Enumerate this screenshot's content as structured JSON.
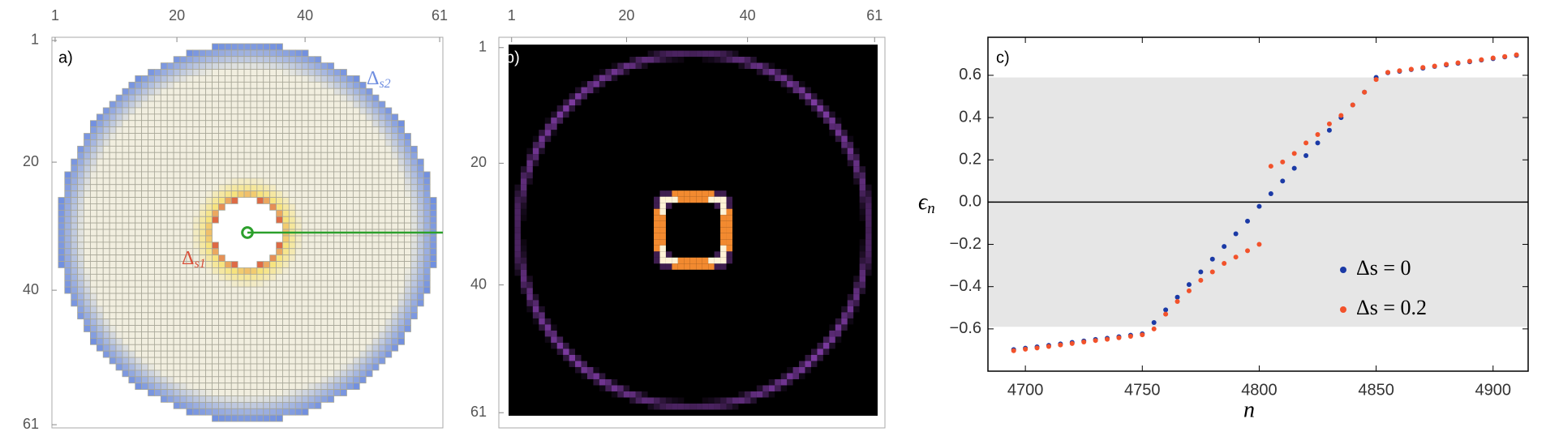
{
  "chart_data": [
    {
      "type": "lattice",
      "panel_label": "a)",
      "labels": [
        {
          "symbol": "Δ",
          "subscript": "s2",
          "color": "#6f8ee0"
        },
        {
          "symbol": "Δ",
          "subscript": "s1",
          "color": "#d9503a"
        }
      ],
      "xticks": [
        1,
        20,
        40,
        61
      ],
      "yticks": [
        1,
        20,
        40,
        61
      ],
      "xlim": [
        0.5,
        61.5
      ],
      "ylim": [
        0.5,
        61.5
      ],
      "y_inverted": true,
      "disk": {
        "center": [
          31,
          31
        ],
        "outer_radius": 29.5,
        "hole_radius": 5.2
      },
      "colors": {
        "outer": "#6f8ee0",
        "inner": "#d9503a",
        "halo": "#f7e37a",
        "bulk": "#f1eedf",
        "cell_edge": "#a8a798",
        "lead": "#2ca02c"
      }
    },
    {
      "type": "heatmap",
      "panel_label": "b)",
      "xticks": [
        1,
        20,
        40,
        61
      ],
      "yticks": [
        1,
        20,
        40,
        61
      ],
      "xlim": [
        0.5,
        61.5
      ],
      "ylim": [
        0.5,
        61.5
      ],
      "y_inverted": true,
      "center": [
        31,
        31
      ],
      "background": "#000000",
      "rings": [
        {
          "radius": 29,
          "color": "#7b3a9e"
        },
        {
          "radius": 5.6,
          "color": "#f28a30",
          "corner_color": "#fff3d6"
        }
      ]
    },
    {
      "type": "scatter",
      "panel_label": "c)",
      "x_label": "n",
      "y_label": {
        "symbol": "ϵ",
        "subscript": "n"
      },
      "xlim": [
        4684,
        4915
      ],
      "ylim": [
        -0.8,
        0.78
      ],
      "xticks": [
        4700,
        4750,
        4800,
        4850,
        4900
      ],
      "yticks": [
        {
          "value": -0.6,
          "label": "−0.6"
        },
        {
          "value": -0.4,
          "label": "−0.4"
        },
        {
          "value": -0.2,
          "label": "−0.2"
        },
        {
          "value": 0,
          "label": "0.0"
        },
        {
          "value": 0.2,
          "label": "0.2"
        },
        {
          "value": 0.4,
          "label": "0.4"
        },
        {
          "value": 0.6,
          "label": "0.6"
        }
      ],
      "shaded_band": [
        -0.59,
        0.59
      ],
      "band_color": "#e6e6e6",
      "hline": 0,
      "x": [
        4695,
        4700,
        4705,
        4710,
        4715,
        4720,
        4725,
        4730,
        4735,
        4740,
        4745,
        4750,
        4755,
        4760,
        4765,
        4770,
        4775,
        4780,
        4785,
        4790,
        4795,
        4800,
        4805,
        4810,
        4815,
        4820,
        4825,
        4830,
        4835,
        4840,
        4845,
        4850,
        4855,
        4860,
        4865,
        4870,
        4875,
        4880,
        4885,
        4890,
        4895,
        4900,
        4905,
        4910
      ],
      "series": [
        {
          "name": "Δs = 0",
          "color": "#1b3aa6",
          "values": [
            -0.698,
            -0.691,
            -0.685,
            -0.678,
            -0.671,
            -0.664,
            -0.657,
            -0.65,
            -0.644,
            -0.637,
            -0.63,
            -0.623,
            -0.57,
            -0.51,
            -0.45,
            -0.39,
            -0.33,
            -0.27,
            -0.21,
            -0.15,
            -0.09,
            -0.02,
            0.04,
            0.1,
            0.16,
            0.22,
            0.28,
            0.34,
            0.4,
            0.46,
            0.52,
            0.59,
            0.612,
            0.619,
            0.627,
            0.634,
            0.642,
            0.649,
            0.657,
            0.664,
            0.672,
            0.679,
            0.687,
            0.694
          ]
        },
        {
          "name": "Δs = 0.2",
          "color": "#f2522b",
          "values": [
            -0.703,
            -0.696,
            -0.69,
            -0.683,
            -0.676,
            -0.669,
            -0.662,
            -0.655,
            -0.649,
            -0.642,
            -0.635,
            -0.628,
            -0.6,
            -0.53,
            -0.47,
            -0.42,
            -0.37,
            -0.33,
            -0.29,
            -0.26,
            -0.23,
            -0.2,
            0.17,
            0.19,
            0.23,
            0.28,
            0.32,
            0.37,
            0.41,
            0.46,
            0.52,
            0.58,
            0.614,
            0.622,
            0.629,
            0.637,
            0.644,
            0.652,
            0.659,
            0.667,
            0.674,
            0.682,
            0.689,
            0.697
          ]
        }
      ]
    }
  ]
}
